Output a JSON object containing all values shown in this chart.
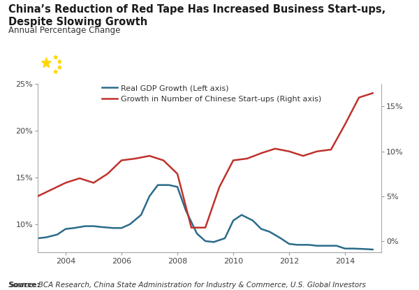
{
  "title": "China’s Reduction of Red Tape Has Increased Business Start-ups, Despite Slowing Growth",
  "subtitle": "Annual Percentage Change",
  "source": "Source: BCA Research, China State Administration for Industry & Commerce, U.S. Global Investors",
  "years_gdp": [
    2003.0,
    2003.3,
    2003.7,
    2004.0,
    2004.3,
    2004.7,
    2005.0,
    2005.3,
    2005.7,
    2006.0,
    2006.3,
    2006.7,
    2007.0,
    2007.3,
    2007.7,
    2008.0,
    2008.3,
    2008.7,
    2009.0,
    2009.3,
    2009.7,
    2010.0,
    2010.3,
    2010.7,
    2011.0,
    2011.3,
    2011.7,
    2012.0,
    2012.3,
    2012.7,
    2013.0,
    2013.3,
    2013.7,
    2014.0,
    2014.3,
    2014.7,
    2015.0
  ],
  "gdp_values": [
    8.5,
    8.6,
    8.9,
    9.5,
    9.6,
    9.8,
    9.8,
    9.7,
    9.6,
    9.6,
    10.0,
    11.0,
    13.0,
    14.2,
    14.2,
    14.0,
    11.5,
    9.0,
    8.2,
    8.1,
    8.5,
    10.4,
    11.0,
    10.4,
    9.5,
    9.2,
    8.5,
    7.9,
    7.8,
    7.8,
    7.7,
    7.7,
    7.7,
    7.4,
    7.4,
    7.35,
    7.3
  ],
  "years_startup": [
    2003.0,
    2004.0,
    2004.5,
    2005.0,
    2005.5,
    2006.0,
    2006.5,
    2007.0,
    2007.5,
    2008.0,
    2008.5,
    2009.0,
    2009.5,
    2010.0,
    2010.5,
    2011.0,
    2011.5,
    2012.0,
    2012.5,
    2013.0,
    2013.5,
    2014.0,
    2014.5,
    2015.0
  ],
  "startup_values": [
    5.0,
    6.5,
    7.0,
    6.5,
    7.5,
    9.0,
    9.2,
    9.5,
    9.0,
    7.5,
    1.5,
    1.5,
    6.0,
    9.0,
    9.2,
    9.8,
    10.3,
    10.0,
    9.5,
    10.0,
    10.2,
    13.0,
    16.0,
    16.5
  ],
  "gdp_color": "#2a6b8a",
  "startup_color": "#c0312b",
  "left_ylim": [
    7,
    25
  ],
  "left_yticks": [
    10,
    15,
    20,
    25
  ],
  "left_yticklabels": [
    "10%",
    "15%",
    "20%",
    "25%"
  ],
  "right_ylim": [
    -1.25,
    17.5
  ],
  "right_yticks": [
    0,
    5,
    10,
    15
  ],
  "right_yticklabels": [
    "0%",
    "5%",
    "10%",
    "15%"
  ],
  "xlim": [
    2003.0,
    2015.3
  ],
  "xticks": [
    2004,
    2006,
    2008,
    2010,
    2012,
    2014
  ],
  "xticklabels": [
    "2004",
    "2006",
    "2008",
    "2010",
    "2012",
    "2014"
  ],
  "legend_gdp": "Real GDP Growth (Left axis)",
  "legend_startup": "Growth in Number of Chinese Start-ups (Right axis)"
}
